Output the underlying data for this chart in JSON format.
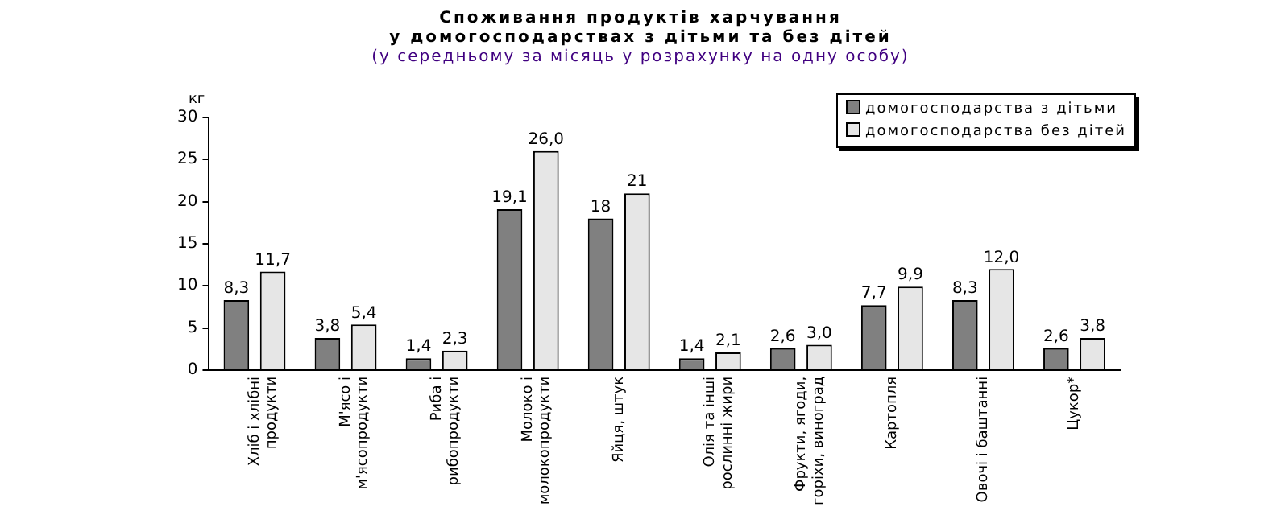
{
  "chart_data": {
    "type": "bar",
    "title": "Споживання продуктів харчування\nу домогосподарствах з дітьми та без дітей",
    "subtitle": "(у середньому за місяць у розрахунку на одну особу)",
    "ylabel": "кг",
    "categories": [
      "Хліб і хлібні\nпродукти",
      "М'ясо і\nм'ясопродукти",
      "Риба і\nрибопродукти",
      "Молоко і\nмолокопродукти",
      "Яйця, штук",
      "Олія та інші\nрослинні жири",
      "Фрукти, ягоди,\nгоріхи, виноград",
      "Картопля",
      "Овочі і баштанні",
      "Цукор*"
    ],
    "series": [
      {
        "name": "домогосподарства з дітьми",
        "color": "#808080",
        "values": [
          8.3,
          3.8,
          1.4,
          19.1,
          18,
          1.4,
          2.6,
          7.7,
          8.3,
          2.6
        ],
        "value_labels": [
          "8,3",
          "3,8",
          "1,4",
          "19,1",
          "18",
          "1,4",
          "2,6",
          "7,7",
          "8,3",
          "2,6"
        ]
      },
      {
        "name": "домогосподарства без дітей",
        "color": "#e6e6e6",
        "values": [
          11.7,
          5.4,
          2.3,
          26.0,
          21,
          2.1,
          3.0,
          9.9,
          12.0,
          3.8
        ],
        "value_labels": [
          "11,7",
          "5,4",
          "2,3",
          "26,0",
          "21",
          "2,1",
          "3,0",
          "9,9",
          "12,0",
          "3,8"
        ]
      }
    ],
    "ylim": [
      0,
      30
    ],
    "yticks": [
      0,
      5,
      10,
      15,
      20,
      25,
      30
    ],
    "grid": false,
    "legend": "top right"
  }
}
